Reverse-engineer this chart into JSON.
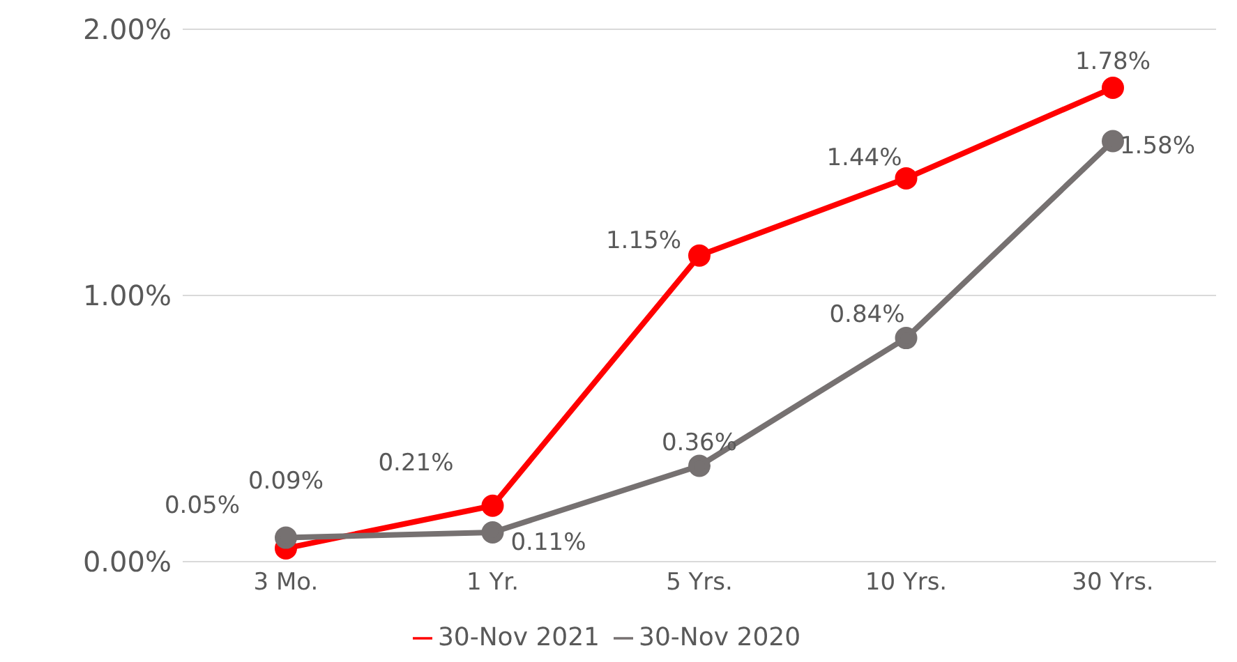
{
  "chart_data": {
    "type": "line",
    "categories": [
      "3 Mo.",
      "1 Yr.",
      "5 Yrs.",
      "10 Yrs.",
      "30 Yrs."
    ],
    "series": [
      {
        "name": "30-Nov 2021",
        "color": "#ff0000",
        "values": [
          0.05,
          0.21,
          1.15,
          1.44,
          1.78
        ],
        "value_labels": [
          "0.05%",
          "0.21%",
          "1.15%",
          "1.44%",
          "1.78%"
        ]
      },
      {
        "name": "30-Nov 2020",
        "color": "#767171",
        "values": [
          0.09,
          0.11,
          0.36,
          0.84,
          1.58
        ],
        "value_labels": [
          "0.09%",
          "0.11%",
          "0.36%",
          "0.84%",
          "1.58%"
        ]
      }
    ],
    "ylim": [
      0,
      2
    ],
    "yticks": [
      {
        "value": 0,
        "label": "0.00%"
      },
      {
        "value": 1,
        "label": "1.00%"
      },
      {
        "value": 2,
        "label": "2.00%"
      }
    ],
    "grid": "y",
    "legend": "bottom",
    "marker": "circle",
    "line_style": "solid"
  }
}
